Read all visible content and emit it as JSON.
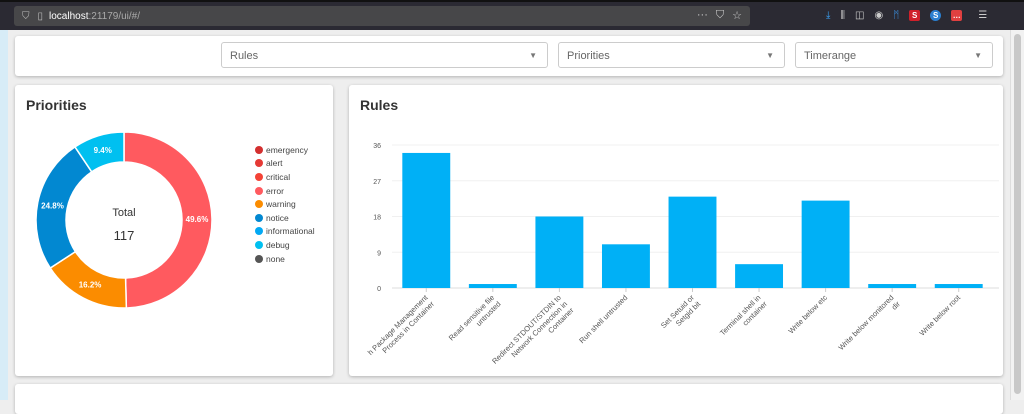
{
  "browser": {
    "url_host": "localhost",
    "url_path": ":21179/ui/#/",
    "icons": [
      "shield-icon",
      "page-icon",
      "more-icon",
      "pocket-icon",
      "star-icon",
      "download-icon",
      "library-icon",
      "sidebar-icon",
      "account-icon",
      "extension-icon",
      "extension-s-icon",
      "extension-s2-icon",
      "extension-red-icon",
      "menu-icon"
    ]
  },
  "filters": {
    "rules": "Rules",
    "priorities": "Priorities",
    "timerange": "Timerange"
  },
  "priorities_card": {
    "title": "Priorities",
    "total_label": "Total",
    "total_value": "117",
    "legend": [
      {
        "name": "emergency",
        "color": "#d32f2f"
      },
      {
        "name": "alert",
        "color": "#e53935"
      },
      {
        "name": "critical",
        "color": "#f44336"
      },
      {
        "name": "error",
        "color": "#ff5a5f"
      },
      {
        "name": "warning",
        "color": "#fb8c00"
      },
      {
        "name": "notice",
        "color": "#0288d1"
      },
      {
        "name": "informational",
        "color": "#03a9f4"
      },
      {
        "name": "debug",
        "color": "#00c0f0"
      },
      {
        "name": "none",
        "color": "#555555"
      }
    ]
  },
  "rules_card": {
    "title": "Rules"
  },
  "chart_data": [
    {
      "type": "pie",
      "donut": true,
      "title": "Priorities",
      "slices": [
        {
          "name": "error",
          "value": 58,
          "label": "49.6%",
          "color": "#ff5a5f"
        },
        {
          "name": "warning",
          "value": 19,
          "label": "16.2%",
          "color": "#fb8c00"
        },
        {
          "name": "notice",
          "value": 29,
          "label": "24.8%",
          "color": "#0288d1"
        },
        {
          "name": "debug",
          "value": 11,
          "label": "9.4%",
          "color": "#00c0f0"
        }
      ],
      "center": {
        "label": "Total",
        "value": 117
      }
    },
    {
      "type": "bar",
      "title": "Rules",
      "color": "#00b0f6",
      "ylim": [
        0,
        36
      ],
      "yticks": [
        0,
        9,
        18,
        27,
        36
      ],
      "grid": true,
      "categories": [
        [
          "h Package Management",
          "Process in Container"
        ],
        [
          "Read sensitive file",
          "untrusted"
        ],
        [
          "Redirect STDOUT/STDIN to",
          "Network Connection in",
          "Container"
        ],
        [
          "Run shell untrusted"
        ],
        [
          "Set Setuid or",
          "Setgid bit"
        ],
        [
          "Terminal shell in",
          "container"
        ],
        [
          "Write below etc"
        ],
        [
          "Write below monitored",
          "dir"
        ],
        [
          "Write below root"
        ]
      ],
      "values": [
        34,
        1,
        18,
        11,
        23,
        6,
        22,
        1,
        1
      ]
    }
  ]
}
